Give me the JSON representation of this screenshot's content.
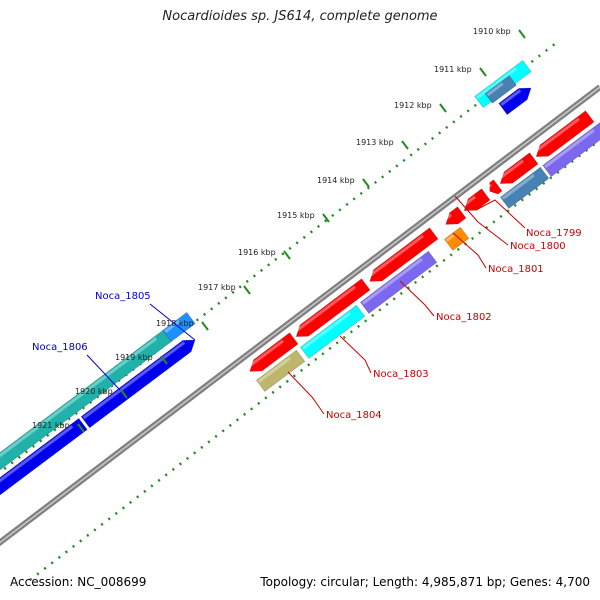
{
  "title": "Nocardioides sp. JS614, complete genome",
  "footer": {
    "accession": "Accession: NC_008699",
    "summary": "Topology: circular; Length: 4,985,871 bp; Genes: 4,700"
  },
  "ticks": [
    "1910 kbp",
    "1911 kbp",
    "1912 kbp",
    "1913 kbp",
    "1914 kbp",
    "1915 kbp",
    "1916 kbp",
    "1917 kbp",
    "1918 kbp",
    "1919 kbp",
    "1920 kbp",
    "1921 kbp"
  ],
  "colors": {
    "red": "#ff0000",
    "blue": "#0000ee",
    "cyan": "#00ffff",
    "teal": "#20b2aa",
    "purple": "#7b68ee",
    "steel": "#4682b4",
    "orange": "#ff8c00",
    "olive": "#bdb76b",
    "sky": "#1e90ff",
    "backbone": "#808080",
    "dots": "#228b22",
    "label_red": "#cc0000",
    "label_blue": "#0000cc"
  },
  "genes": [
    {
      "label": "Noca_1799",
      "color": "red"
    },
    {
      "label": "Noca_1800",
      "color": "red"
    },
    {
      "label": "Noca_1801",
      "color": "red"
    },
    {
      "label": "Noca_1802",
      "color": "red"
    },
    {
      "label": "Noca_1803",
      "color": "red"
    },
    {
      "label": "Noca_1804",
      "color": "red"
    },
    {
      "label": "Noca_1805",
      "color": "blue"
    },
    {
      "label": "Noca_1806",
      "color": "blue"
    }
  ]
}
